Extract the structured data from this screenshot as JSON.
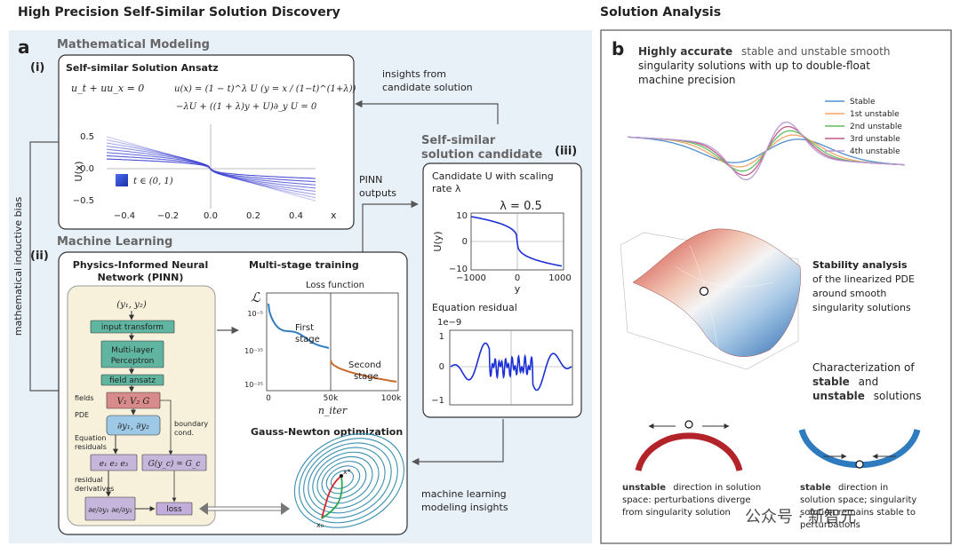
{
  "header": {
    "left_title": "High Precision Self-Similar Solution Discovery",
    "right_title": "Solution Analysis"
  },
  "panel_a": {
    "letter": "a",
    "math_modeling_label": "Mathematical Modeling",
    "sec_i_label": "(i)",
    "ansatz_title": "Self-similar Solution Ansatz",
    "eq_burgers": "u_t + uu_x = 0",
    "eq_ansatz": "u(x) = (1 − t)^λ U (y = x / (1−t)^(1+λ))",
    "eq_profile": "−λU + ((1 + λ)y + U)∂_y U = 0",
    "side_label": "mathematical inductive bias",
    "insights_line1": "insights from",
    "insights_line2": "candidate solution",
    "pinn_out_line1": "PINN",
    "pinn_out_line2": "outputs",
    "candidate_title_line1": "Self-similar",
    "candidate_title_line2": "solution candidate",
    "sec_iii_label": "(iii)",
    "ml_label": "Machine Learning",
    "sec_ii_label": "(ii)",
    "ml_insights_line1": "machine learning",
    "ml_insights_line2": "modeling insights"
  },
  "pinn": {
    "title_line1": "Physics-Informed Neural",
    "title_line2": "Network (PINN)",
    "input_vars": "(y₁, y₂)",
    "box_input_transform": "input transform",
    "box_mlp_line1": "Multi-layer",
    "box_mlp_line2": "Perceptron",
    "box_field_ansatz": "field ansatz",
    "fields_label": "fields",
    "fields_value": "V₁ V₂ G",
    "pde_label": "PDE",
    "pde_value": "∂y₁, ∂y₂",
    "boundary_line1": "boundary",
    "boundary_line2": "cond.",
    "eq_res_line1": "Equation",
    "eq_res_line2": "residuals",
    "eq_res_value": "e₁ e₂ e₃",
    "bc_value": "G(y_c) = G_c",
    "res_deriv_line1": "residual",
    "res_deriv_line2": "derivatives",
    "res_deriv_value": "∂e/∂y₁  ∂e/∂y₂",
    "loss_label": "loss"
  },
  "training": {
    "title": "Multi-stage training",
    "loss_fn_label": "Loss function",
    "y_symbol": "ℒ",
    "y_ticks": [
      "10⁻⁵",
      "10⁻¹⁵",
      "10⁻²⁵"
    ],
    "x_ticks": [
      "0",
      "50k",
      "100k"
    ],
    "x_label": "n_iter",
    "stage1_line1": "First",
    "stage1_line2": "stage",
    "stage2_line1": "Second",
    "stage2_line2": "stage",
    "gn_title": "Gauss-Newton optimization",
    "x0_label": "x₀",
    "xstar_label": "x*"
  },
  "candidate": {
    "title_line1": "Candidate U with scaling",
    "title_line2": "rate λ",
    "lambda_label": "λ = 0.5",
    "uy_label": "U(y)",
    "y_label": "y",
    "y_ticks": [
      "10",
      "0",
      "−10"
    ],
    "x_ticks": [
      "−1000",
      "0",
      "1000"
    ],
    "residual_title": "Equation residual",
    "residual_scale": "1e−9",
    "residual_y_ticks": [
      "1",
      "0",
      "−1"
    ]
  },
  "ansatz_plot": {
    "y_label": "U(x)",
    "x_label": "x",
    "y_ticks": [
      "0.5",
      "0.0",
      "−0.5"
    ],
    "x_ticks": [
      "−0.4",
      "−0.2",
      "0.0",
      "0.2",
      "0.4"
    ],
    "legend": "t ∈ (0, 1)"
  },
  "panel_b": {
    "letter": "b",
    "desc_bold": "Highly accurate",
    "desc_line1": "stable and unstable smooth",
    "desc_line2": "singularity solutions with up to double-float",
    "desc_line3": "machine precision",
    "legend": [
      "Stable",
      "1st unstable",
      "2nd unstable",
      "3rd unstable",
      "4th unstable"
    ],
    "stability_bold": "Stability analysis",
    "stability_line2": "of the linearized PDE",
    "stability_line3": "around smooth",
    "stability_line4": "singularity solutions",
    "char_line1": "Characterization of",
    "char_stable": "stable",
    "char_and": "and",
    "char_unstable": "unstable",
    "char_solutions": "solutions",
    "unstable_bold": "unstable",
    "unstable_text1": "direction in solution",
    "unstable_text2": "space: perturbations diverge",
    "unstable_text3": "from singularity solution",
    "stable_bold": "stable",
    "stable_text1": "direction in",
    "stable_text2": "solution space; singularity",
    "stable_text3": "solution remains stable to",
    "stable_text4": "perturbations",
    "watermark": "公众号 · 新智元"
  },
  "colors": {
    "panel_bg": "#e8f0f8",
    "pinn_bg": "#f7f1dc",
    "teal_box": "#5fb59f",
    "red_box": "#d98a8a",
    "blue_box": "#9ec9e6",
    "purple_box": "#c7b6dc",
    "loss_box": "#c3aedb",
    "training_curve": "#2f7ec1",
    "training_curve2": "#c96a2a",
    "candidate_curve": "#1a2fd6",
    "stable": "#4f8fd0",
    "unstable1": "#f3a46a",
    "unstable2": "#5fbf5f",
    "unstable3": "#c05a8a",
    "unstable4": "#b79ad6",
    "arc_unstable": "#b2232a",
    "arc_stable": "#2f7bbf"
  }
}
